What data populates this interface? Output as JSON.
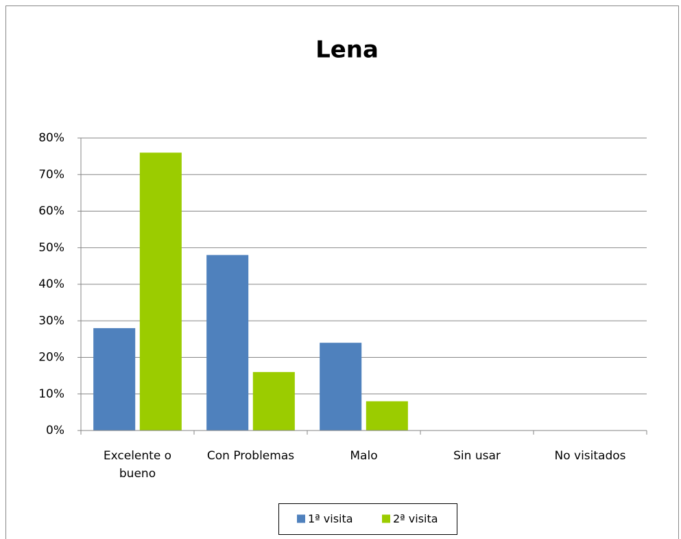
{
  "chart_data": {
    "type": "bar",
    "title": "Lena",
    "categories": [
      "Excelente o bueno",
      "Con Problemas",
      "Malo",
      "Sin usar",
      "No visitados"
    ],
    "series": [
      {
        "name": "1ª visita",
        "color": "#4f81bd",
        "values": [
          28,
          48,
          24,
          0,
          0
        ]
      },
      {
        "name": "2ª visita",
        "color": "#9bcc00",
        "values": [
          76,
          16,
          8,
          0,
          0
        ]
      }
    ],
    "ylim": [
      0,
      80
    ],
    "yticks": [
      {
        "value": 0,
        "label": "0%"
      },
      {
        "value": 10,
        "label": "10%"
      },
      {
        "value": 20,
        "label": "20%"
      },
      {
        "value": 30,
        "label": "30%"
      },
      {
        "value": 40,
        "label": "40%"
      },
      {
        "value": 50,
        "label": "50%"
      },
      {
        "value": 60,
        "label": "60%"
      },
      {
        "value": 70,
        "label": "70%"
      },
      {
        "value": 80,
        "label": "80%"
      }
    ],
    "grid": true,
    "legend": "bottom"
  }
}
